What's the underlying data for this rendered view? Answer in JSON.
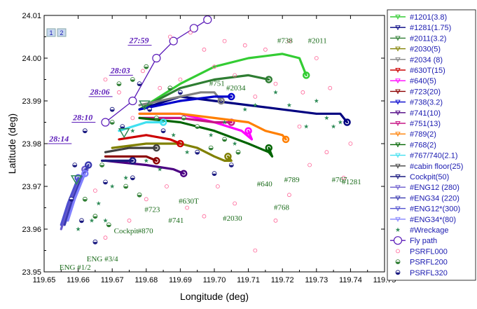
{
  "chart_data": {
    "type": "scatter",
    "xlabel": "Longitude (deg)",
    "ylabel": "Latitude (deg)",
    "xlim": [
      119.65,
      119.75
    ],
    "ylim": [
      23.95,
      24.01
    ],
    "x_ticks": [
      "119.65",
      "119.66",
      "119.67",
      "119.68",
      "119.69",
      "119.70",
      "119.71",
      "119.72",
      "119.73",
      "119.74",
      "119.75"
    ],
    "y_ticks": [
      "23.95",
      "23.96",
      "23.97",
      "23.98",
      "23.99",
      "24.00",
      "24.01"
    ],
    "legend_position": "right",
    "corner_labels": [
      "1",
      "2"
    ],
    "series": [
      {
        "name": "#1201(3.8)",
        "color": "#33cc33",
        "points": [
          [
            119.678,
            23.988
          ],
          [
            119.69,
            23.994
          ],
          [
            119.7,
            23.998
          ],
          [
            119.71,
            24.0
          ],
          [
            119.72,
            24.001
          ],
          [
            119.725,
            24.0
          ],
          [
            119.727,
            23.996
          ]
        ]
      },
      {
        "name": "#1281(1.75)",
        "color": "#000080",
        "points": [
          [
            119.678,
            23.988
          ],
          [
            119.69,
            23.991
          ],
          [
            119.7,
            23.99
          ],
          [
            119.71,
            23.989
          ],
          [
            119.72,
            23.988
          ],
          [
            119.73,
            23.987
          ],
          [
            119.737,
            23.987
          ],
          [
            119.739,
            23.985
          ]
        ]
      },
      {
        "name": "#2011(3.2)",
        "color": "#2e7d32",
        "points": [
          [
            119.678,
            23.988
          ],
          [
            119.69,
            23.993
          ],
          [
            119.7,
            23.995
          ],
          [
            119.71,
            23.996
          ],
          [
            119.716,
            23.995
          ]
        ]
      },
      {
        "name": "#2030(5)",
        "color": "#808000",
        "points": [
          [
            119.67,
            23.979
          ],
          [
            119.68,
            23.98
          ],
          [
            119.69,
            23.98
          ],
          [
            119.695,
            23.979
          ],
          [
            119.7,
            23.977
          ],
          [
            119.703,
            23.976
          ],
          [
            119.705,
            23.976
          ],
          [
            119.704,
            23.977
          ]
        ]
      },
      {
        "name": "#2034 (8)",
        "color": "#808080",
        "points": [
          [
            119.678,
            23.989
          ],
          [
            119.69,
            23.991
          ],
          [
            119.696,
            23.992
          ],
          [
            119.7,
            23.992
          ],
          [
            119.702,
            23.99
          ]
        ]
      },
      {
        "name": "#630T(15)",
        "color": "#cc0000",
        "points": [
          [
            119.672,
            23.981
          ],
          [
            119.68,
            23.982
          ],
          [
            119.687,
            23.981
          ],
          [
            119.69,
            23.98
          ]
        ]
      },
      {
        "name": "#640(5)",
        "color": "#ff00ff",
        "points": [
          [
            119.678,
            23.987
          ],
          [
            119.69,
            23.987
          ],
          [
            119.7,
            23.985
          ],
          [
            119.708,
            23.983
          ],
          [
            119.711,
            23.981
          ],
          [
            119.71,
            23.983
          ]
        ]
      },
      {
        "name": "#723(20)",
        "color": "#8b0000",
        "points": [
          [
            119.668,
            23.977
          ],
          [
            119.675,
            23.977
          ],
          [
            119.68,
            23.977
          ],
          [
            119.683,
            23.976
          ]
        ]
      },
      {
        "name": "#738(3.2)",
        "color": "#0000cc",
        "points": [
          [
            119.678,
            23.988
          ],
          [
            119.69,
            23.99
          ],
          [
            119.7,
            23.991
          ],
          [
            119.705,
            23.991
          ]
        ]
      },
      {
        "name": "#741(10)",
        "color": "#4b0082",
        "points": [
          [
            119.668,
            23.976
          ],
          [
            119.68,
            23.975
          ],
          [
            119.688,
            23.974
          ],
          [
            119.691,
            23.973
          ]
        ]
      },
      {
        "name": "#751(13)",
        "color": "#c71585",
        "points": [
          [
            119.678,
            23.986
          ],
          [
            119.69,
            23.986
          ],
          [
            119.7,
            23.985
          ],
          [
            119.705,
            23.985
          ]
        ]
      },
      {
        "name": "#789(2)",
        "color": "#ff7f00",
        "points": [
          [
            119.678,
            23.987
          ],
          [
            119.69,
            23.987
          ],
          [
            119.7,
            23.986
          ],
          [
            119.71,
            23.985
          ],
          [
            119.715,
            23.983
          ],
          [
            119.72,
            23.982
          ],
          [
            119.721,
            23.981
          ]
        ]
      },
      {
        "name": "#768(2)",
        "color": "#006400",
        "points": [
          [
            119.678,
            23.986
          ],
          [
            119.69,
            23.985
          ],
          [
            119.7,
            23.983
          ],
          [
            119.71,
            23.98
          ],
          [
            119.716,
            23.978
          ],
          [
            119.717,
            23.977
          ],
          [
            119.716,
            23.979
          ]
        ]
      },
      {
        "name": "#767/740(2.1)",
        "color": "#40e0f0",
        "points": [
          [
            119.672,
            23.983
          ],
          [
            119.68,
            23.985
          ],
          [
            119.685,
            23.985
          ]
        ]
      },
      {
        "name": "#cabin floor(25)",
        "color": "#404040",
        "points": [
          [
            119.668,
            23.978
          ],
          [
            119.675,
            23.979
          ],
          [
            119.68,
            23.979
          ],
          [
            119.683,
            23.979
          ]
        ]
      },
      {
        "name": "Cockpit(50)",
        "color": "#1a1a80",
        "points": [
          [
            119.667,
            23.976
          ],
          [
            119.672,
            23.976
          ],
          [
            119.676,
            23.976
          ]
        ]
      },
      {
        "name": "#ENG12 (280)",
        "color": "#6a5acd",
        "points": [
          [
            119.655,
            23.96
          ],
          [
            119.657,
            23.965
          ],
          [
            119.66,
            23.971
          ],
          [
            119.662,
            23.974
          ]
        ]
      },
      {
        "name": "#ENG34 (220)",
        "color": "#3a3ab0",
        "points": [
          [
            119.656,
            23.961
          ],
          [
            119.658,
            23.966
          ],
          [
            119.661,
            23.972
          ],
          [
            119.663,
            23.975
          ]
        ]
      },
      {
        "name": "#ENG12*(300)",
        "color": "#5050d0",
        "points": [
          [
            119.655,
            23.961
          ],
          [
            119.657,
            23.966
          ],
          [
            119.66,
            23.972
          ]
        ]
      },
      {
        "name": "#ENG34*(80)",
        "color": "#8080ff",
        "points": [
          [
            119.657,
            23.962
          ],
          [
            119.659,
            23.967
          ],
          [
            119.662,
            23.973
          ]
        ]
      },
      {
        "name": "#Wreckage",
        "color": "#2e8b57",
        "points": [
          [
            119.66,
            23.96
          ],
          [
            119.664,
            23.962
          ],
          [
            119.666,
            23.966
          ],
          [
            119.668,
            23.962
          ],
          [
            119.67,
            23.97
          ],
          [
            119.674,
            23.972
          ],
          [
            119.676,
            23.983
          ],
          [
            119.68,
            23.976
          ],
          [
            119.684,
            23.974
          ],
          [
            119.688,
            23.982
          ],
          [
            119.692,
            23.978
          ],
          [
            119.695,
            23.984
          ],
          [
            119.699,
            23.982
          ],
          [
            119.703,
            23.985
          ],
          [
            119.706,
            23.98
          ],
          [
            119.709,
            23.988
          ],
          [
            119.712,
            23.989
          ],
          [
            119.718,
            23.992
          ],
          [
            119.722,
            23.989
          ],
          [
            119.727,
            23.984
          ],
          [
            119.73,
            23.99
          ],
          [
            119.733,
            23.986
          ],
          [
            119.735,
            23.984
          ],
          [
            119.737,
            23.985
          ]
        ]
      },
      {
        "name": "Fly path",
        "color": "#5a1ab8",
        "points": [
          [
            119.668,
            23.985
          ],
          [
            119.676,
            23.99
          ],
          [
            119.683,
            24.0
          ],
          [
            119.688,
            24.004
          ],
          [
            119.694,
            24.007
          ],
          [
            119.698,
            24.009
          ]
        ]
      },
      {
        "name": "PSRFL000",
        "color": "#ff6699",
        "points": [
          [
            119.668,
            23.995
          ],
          [
            119.672,
            23.992
          ],
          [
            119.676,
            23.986
          ],
          [
            119.679,
            23.997
          ],
          [
            119.684,
            23.993
          ],
          [
            119.687,
            24.005
          ],
          [
            119.69,
            23.995
          ],
          [
            119.693,
            24.006
          ],
          [
            119.697,
            24.002
          ],
          [
            119.7,
            23.998
          ],
          [
            119.703,
            24.004
          ],
          [
            119.706,
            23.996
          ],
          [
            119.709,
            24.003
          ],
          [
            119.712,
            23.991
          ],
          [
            119.715,
            24.002
          ],
          [
            119.718,
            23.994
          ],
          [
            119.722,
            24.004
          ],
          [
            119.726,
            23.992
          ],
          [
            119.73,
            24.0
          ],
          [
            119.734,
            23.993
          ],
          [
            119.665,
            23.969
          ],
          [
            119.668,
            23.958
          ],
          [
            119.675,
            23.962
          ],
          [
            119.68,
            23.967
          ],
          [
            119.686,
            23.97
          ],
          [
            119.692,
            23.965
          ],
          [
            119.697,
            23.963
          ],
          [
            119.701,
            23.97
          ],
          [
            119.706,
            23.966
          ],
          [
            119.712,
            23.955
          ],
          [
            119.718,
            23.962
          ],
          [
            119.722,
            23.968
          ],
          [
            119.728,
            23.975
          ],
          [
            119.733,
            23.978
          ],
          [
            119.738,
            23.972
          ],
          [
            119.74,
            23.98
          ],
          [
            119.725,
            23.984
          ]
        ]
      },
      {
        "name": "PSRFL200",
        "color": "#2e7d32",
        "points": [
          [
            119.667,
            23.975
          ],
          [
            119.67,
            23.985
          ],
          [
            119.672,
            23.994
          ],
          [
            119.676,
            23.995
          ],
          [
            119.68,
            23.998
          ],
          [
            119.683,
            23.986
          ],
          [
            119.687,
            23.993
          ],
          [
            119.691,
            23.986
          ],
          [
            119.695,
            23.984
          ],
          [
            119.699,
            23.979
          ],
          [
            119.703,
            23.981
          ],
          [
            119.707,
            23.978
          ],
          [
            119.665,
            23.963
          ],
          [
            119.662,
            23.967
          ],
          [
            119.669,
            23.961
          ],
          [
            119.674,
            23.97
          ],
          [
            119.678,
            23.968
          ]
        ]
      },
      {
        "name": "PSRFL320",
        "color": "#1a1a80",
        "points": [
          [
            119.659,
            23.975
          ],
          [
            119.662,
            23.983
          ],
          [
            119.67,
            23.988
          ],
          [
            119.673,
            23.984
          ],
          [
            119.676,
            23.972
          ],
          [
            119.678,
            23.994
          ],
          [
            119.681,
            23.988
          ],
          [
            119.685,
            23.983
          ],
          [
            119.69,
            23.992
          ],
          [
            119.695,
            23.978
          ],
          [
            119.7,
            23.973
          ],
          [
            119.705,
            23.975
          ],
          [
            119.658,
            23.967
          ],
          [
            119.661,
            23.962
          ],
          [
            119.665,
            23.957
          ],
          [
            119.668,
            23.971
          ]
        ]
      }
    ],
    "annotations": [
      {
        "text": "#738",
        "x": 119.7185,
        "y": 24.0035
      },
      {
        "text": "#2011",
        "x": 119.7275,
        "y": 24.0035
      },
      {
        "text": "#751",
        "x": 119.6985,
        "y": 23.9935
      },
      {
        "text": "#2034",
        "x": 119.7035,
        "y": 23.9925
      },
      {
        "text": "#630T",
        "x": 119.6895,
        "y": 23.966
      },
      {
        "text": "#640",
        "x": 119.7125,
        "y": 23.97
      },
      {
        "text": "#2030",
        "x": 119.7025,
        "y": 23.962
      },
      {
        "text": "#789",
        "x": 119.7205,
        "y": 23.971
      },
      {
        "text": "#768",
        "x": 119.7175,
        "y": 23.9645
      },
      {
        "text": "#767",
        "x": 119.7345,
        "y": 23.971
      },
      {
        "text": "#1281",
        "x": 119.7375,
        "y": 23.9705
      },
      {
        "text": "#723",
        "x": 119.6795,
        "y": 23.964
      },
      {
        "text": "#741",
        "x": 119.6865,
        "y": 23.9615
      },
      {
        "text": "#870",
        "x": 119.6775,
        "y": 23.959
      },
      {
        "text": "Cockpit",
        "x": 119.6705,
        "y": 23.959
      },
      {
        "text": "ENG #3/4",
        "x": 119.6625,
        "y": 23.9525
      },
      {
        "text": "ENG #1/2",
        "x": 119.6545,
        "y": 23.9505
      }
    ],
    "time_annotations": [
      {
        "text": "27:59",
        "x": 119.675,
        "y": 24.0035
      },
      {
        "text": "28:03",
        "x": 119.6695,
        "y": 23.9965
      },
      {
        "text": "28:06",
        "x": 119.6635,
        "y": 23.9915
      },
      {
        "text": "28:10",
        "x": 119.6585,
        "y": 23.9855
      },
      {
        "text": "28:14",
        "x": 119.6515,
        "y": 23.9805
      }
    ]
  }
}
